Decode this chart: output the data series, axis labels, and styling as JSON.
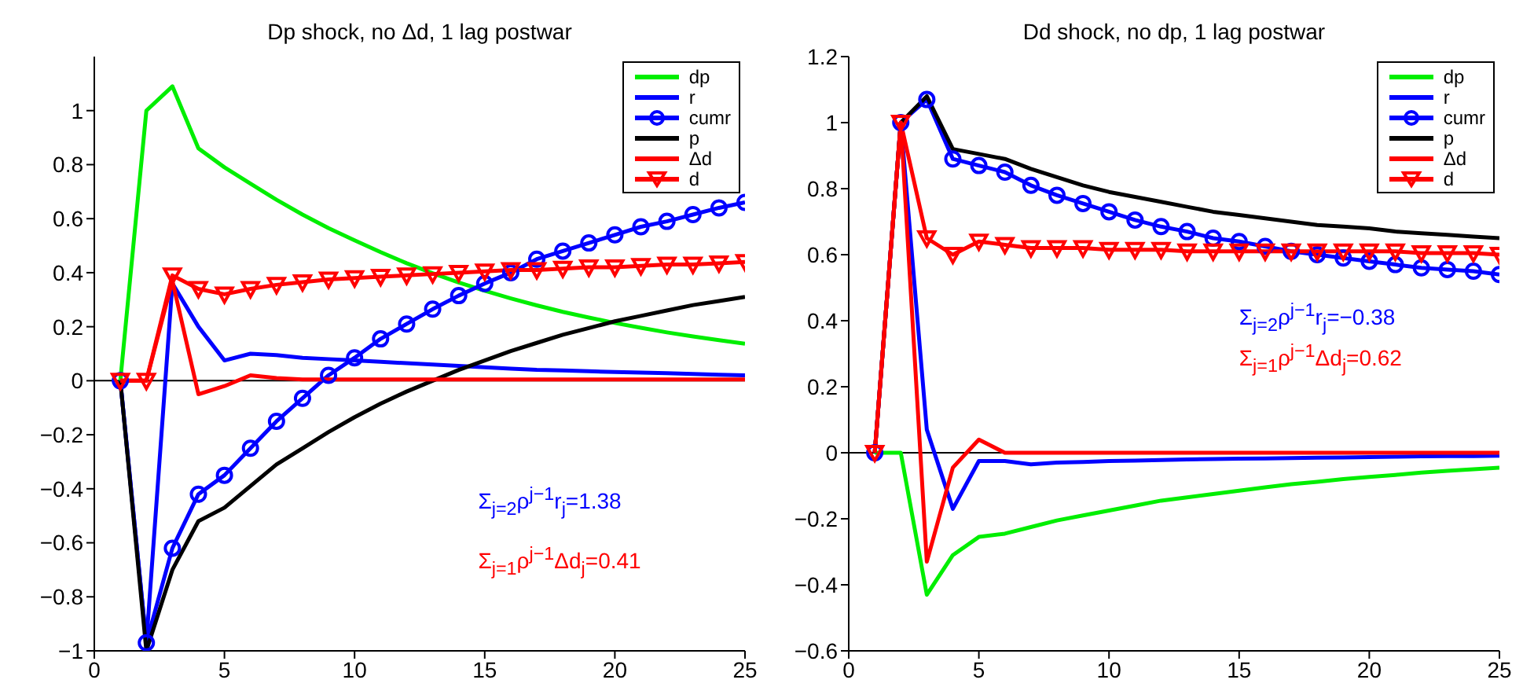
{
  "chart_data": [
    {
      "type": "line",
      "title": "Dp shock, no Δd, 1 lag postwar",
      "x": [
        1,
        2,
        3,
        4,
        5,
        6,
        7,
        8,
        9,
        10,
        11,
        12,
        13,
        14,
        15,
        16,
        17,
        18,
        19,
        20,
        21,
        22,
        23,
        24,
        25
      ],
      "xlim": [
        0,
        25
      ],
      "xticks": [
        0,
        5,
        10,
        15,
        20,
        25
      ],
      "ylim": [
        -1,
        1.2
      ],
      "yticks": [
        -1,
        -0.8,
        -0.6,
        -0.4,
        -0.2,
        0,
        0.2,
        0.4,
        0.6,
        0.8,
        1
      ],
      "legend": "top right",
      "grid": false,
      "ref_lines": [
        {
          "axis": "y",
          "value": 0,
          "color": "#000000"
        }
      ],
      "annotations": [
        "Σ$_{j=2}$ρ$^{j−1}$r$_{j}$=1.38",
        "Σ$_{j=1}$ρ$^{j−1}$Δd$_{j}$=0.41"
      ],
      "series": [
        {
          "name": "dp",
          "color": "#00ee00",
          "values": [
            0,
            1.0,
            1.09,
            0.86,
            0.79,
            0.73,
            0.67,
            0.615,
            0.565,
            0.52,
            0.476,
            0.435,
            0.398,
            0.364,
            0.333,
            0.305,
            0.279,
            0.255,
            0.234,
            0.214,
            0.196,
            0.179,
            0.164,
            0.15,
            0.137
          ]
        },
        {
          "name": "r",
          "color": "#0000ff",
          "values": [
            0,
            -0.97,
            0.36,
            0.2,
            0.075,
            0.1,
            0.095,
            0.085,
            0.08,
            0.075,
            0.07,
            0.065,
            0.06,
            0.055,
            0.05,
            0.045,
            0.04,
            0.038,
            0.035,
            0.032,
            0.03,
            0.028,
            0.025,
            0.022,
            0.02
          ]
        },
        {
          "name": "cumr",
          "color": "#0000ff",
          "marker": "circle",
          "values": [
            0,
            -0.97,
            -0.62,
            -0.42,
            -0.35,
            -0.25,
            -0.15,
            -0.065,
            0.02,
            0.085,
            0.155,
            0.21,
            0.265,
            0.315,
            0.36,
            0.4,
            0.45,
            0.48,
            0.51,
            0.54,
            0.57,
            0.59,
            0.615,
            0.64,
            0.66
          ]
        },
        {
          "name": "p",
          "color": "#000000",
          "values": [
            0,
            -1.0,
            -0.7,
            -0.52,
            -0.47,
            -0.39,
            -0.31,
            -0.25,
            -0.19,
            -0.135,
            -0.085,
            -0.04,
            0.0,
            0.04,
            0.075,
            0.11,
            0.14,
            0.17,
            0.195,
            0.22,
            0.24,
            0.26,
            0.28,
            0.295,
            0.31
          ]
        },
        {
          "name": "Δd",
          "color": "#ff0000",
          "values": [
            0,
            0,
            0.37,
            -0.05,
            -0.02,
            0.02,
            0.01,
            0.005,
            0.005,
            0.005,
            0.005,
            0.005,
            0.005,
            0.005,
            0.005,
            0.005,
            0.005,
            0.005,
            0.005,
            0.005,
            0.005,
            0.005,
            0.005,
            0.005,
            0.005
          ]
        },
        {
          "name": "d",
          "color": "#ff0000",
          "marker": "triangle",
          "values": [
            0,
            0,
            0.39,
            0.34,
            0.32,
            0.34,
            0.355,
            0.365,
            0.375,
            0.38,
            0.385,
            0.39,
            0.395,
            0.4,
            0.405,
            0.41,
            0.41,
            0.415,
            0.42,
            0.42,
            0.425,
            0.43,
            0.43,
            0.435,
            0.44
          ]
        }
      ]
    },
    {
      "type": "line",
      "title": "Dd shock, no dp, 1 lag postwar",
      "x": [
        1,
        2,
        3,
        4,
        5,
        6,
        7,
        8,
        9,
        10,
        11,
        12,
        13,
        14,
        15,
        16,
        17,
        18,
        19,
        20,
        21,
        22,
        23,
        24,
        25
      ],
      "xlim": [
        0,
        25
      ],
      "xticks": [
        0,
        5,
        10,
        15,
        20,
        25
      ],
      "ylim": [
        -0.6,
        1.2
      ],
      "yticks": [
        -0.6,
        -0.4,
        -0.2,
        0,
        0.2,
        0.4,
        0.6,
        0.8,
        1,
        1.2
      ],
      "legend": "top right",
      "grid": false,
      "ref_lines": [
        {
          "axis": "y",
          "value": 0,
          "color": "#000000"
        }
      ],
      "annotations": [
        "Σ$_{j=2}$ρ$^{j−1}$r$_{j}$=−0.38",
        "Σ$_{j=1}$ρ$^{j−1}$Δd$_{j}$=0.62"
      ],
      "series": [
        {
          "name": "dp",
          "color": "#00ee00",
          "values": [
            0,
            0,
            -0.43,
            -0.31,
            -0.255,
            -0.245,
            -0.225,
            -0.205,
            -0.19,
            -0.175,
            -0.16,
            -0.145,
            -0.135,
            -0.125,
            -0.115,
            -0.105,
            -0.095,
            -0.088,
            -0.08,
            -0.073,
            -0.067,
            -0.06,
            -0.055,
            -0.05,
            -0.045
          ]
        },
        {
          "name": "r",
          "color": "#0000ff",
          "values": [
            0,
            1.0,
            0.07,
            -0.17,
            -0.025,
            -0.025,
            -0.035,
            -0.03,
            -0.028,
            -0.025,
            -0.024,
            -0.022,
            -0.02,
            -0.019,
            -0.018,
            -0.017,
            -0.016,
            -0.015,
            -0.014,
            -0.013,
            -0.012,
            -0.011,
            -0.01,
            -0.01,
            -0.009
          ]
        },
        {
          "name": "cumr",
          "color": "#0000ff",
          "marker": "circle",
          "values": [
            0,
            1.0,
            1.07,
            0.89,
            0.87,
            0.85,
            0.81,
            0.78,
            0.755,
            0.73,
            0.705,
            0.685,
            0.67,
            0.65,
            0.64,
            0.625,
            0.61,
            0.6,
            0.59,
            0.58,
            0.57,
            0.56,
            0.555,
            0.55,
            0.54
          ]
        },
        {
          "name": "p",
          "color": "#000000",
          "values": [
            0,
            1.0,
            1.08,
            0.92,
            0.905,
            0.89,
            0.86,
            0.835,
            0.81,
            0.79,
            0.775,
            0.76,
            0.745,
            0.73,
            0.72,
            0.71,
            0.7,
            0.69,
            0.685,
            0.68,
            0.67,
            0.665,
            0.66,
            0.655,
            0.65
          ]
        },
        {
          "name": "Δd",
          "color": "#ff0000",
          "values": [
            0,
            1.0,
            -0.33,
            -0.045,
            0.04,
            0,
            0,
            0,
            0,
            0,
            0,
            0,
            0,
            0,
            0,
            0,
            0,
            0,
            0,
            0,
            0,
            0,
            0,
            0,
            0
          ]
        },
        {
          "name": "d",
          "color": "#ff0000",
          "marker": "triangle",
          "values": [
            0,
            1.0,
            0.65,
            0.6,
            0.64,
            0.63,
            0.62,
            0.62,
            0.62,
            0.615,
            0.615,
            0.615,
            0.61,
            0.61,
            0.61,
            0.61,
            0.61,
            0.61,
            0.61,
            0.61,
            0.61,
            0.605,
            0.605,
            0.605,
            0.6
          ]
        }
      ]
    }
  ]
}
